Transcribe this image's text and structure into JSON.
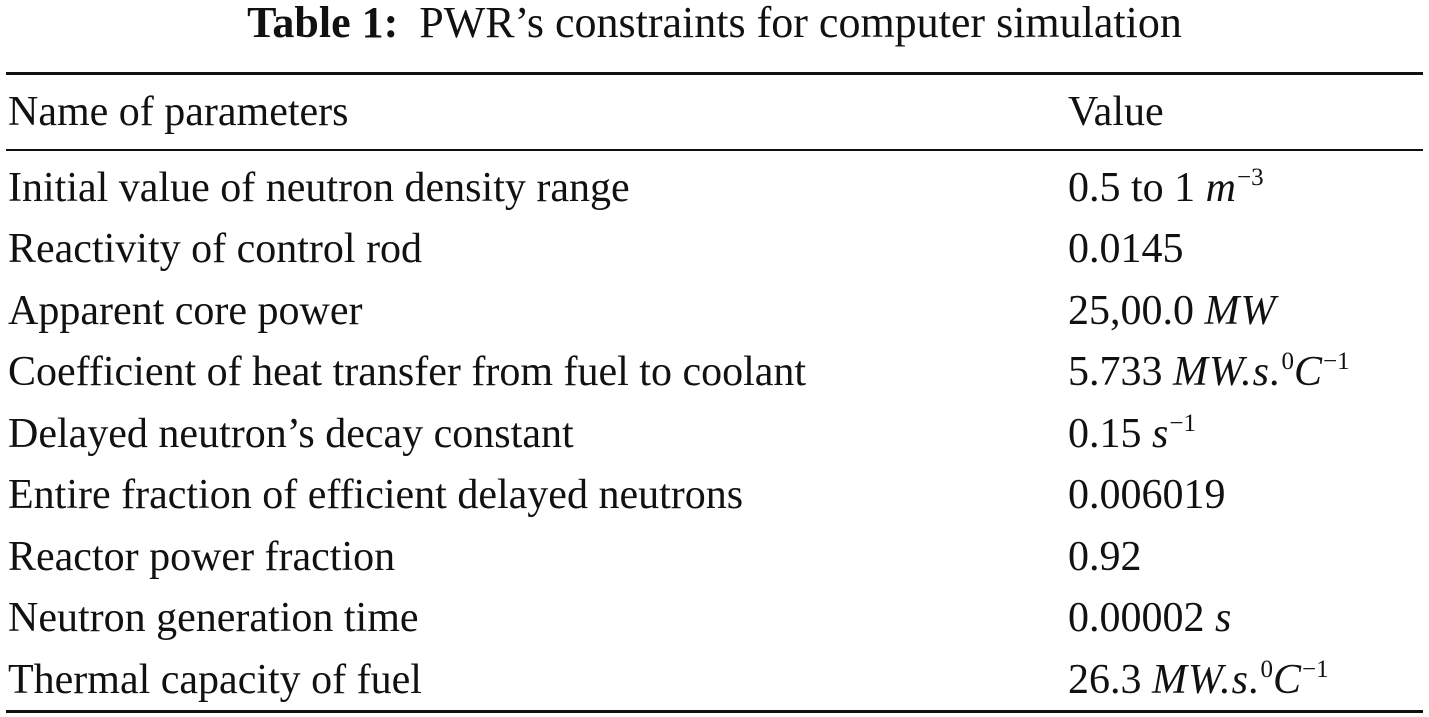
{
  "title": {
    "label": "Table 1:",
    "text": "PWR’s constraints for computer simulation"
  },
  "table": {
    "header": [
      "Name of parameters",
      "Value"
    ],
    "rows": [
      [
        "Initial value of neutron density range",
        [
          "0.5 to 1",
          "m",
          "−3"
        ]
      ],
      [
        "Reactivity of control rod",
        [
          "0.0145"
        ]
      ],
      [
        "Apparent core power",
        [
          "25,00.0",
          "MW"
        ]
      ],
      [
        "Coefficient of heat transfer from fuel to coolant",
        [
          "5.733",
          "MW.s.",
          "0",
          "C",
          "−1"
        ]
      ],
      [
        "Delayed neutron’s decay constant",
        [
          "0.15",
          "s",
          "−1"
        ]
      ],
      [
        "Entire fraction of efficient delayed neutrons",
        [
          "0.006019"
        ]
      ],
      [
        "Reactor power fraction",
        [
          "0.92"
        ]
      ],
      [
        "Neutron generation time",
        [
          "0.00002",
          "s"
        ]
      ],
      [
        "Thermal capacity of fuel",
        [
          "26.3",
          "MW.s.",
          "0",
          "C",
          "−1"
        ]
      ]
    ]
  }
}
